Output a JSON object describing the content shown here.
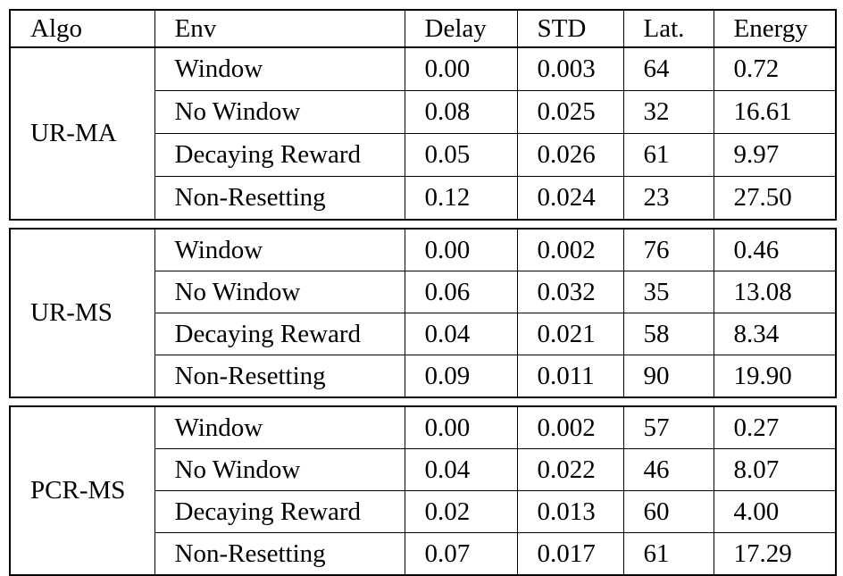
{
  "table": {
    "headers": {
      "algo": "Algo",
      "env": "Env",
      "delay": "Delay",
      "std": "STD",
      "lat": "Lat.",
      "energy": "Energy"
    },
    "groups": [
      {
        "algo": "UR-MA",
        "rows": [
          {
            "env": "Window",
            "delay": "0.00",
            "std": "0.003",
            "lat": "64",
            "energy": "0.72"
          },
          {
            "env": "No Window",
            "delay": "0.08",
            "std": "0.025",
            "lat": "32",
            "energy": "16.61"
          },
          {
            "env": "Decaying Reward",
            "delay": "0.05",
            "std": "0.026",
            "lat": "61",
            "energy": "9.97"
          },
          {
            "env": "Non-Resetting",
            "delay": "0.12",
            "std": "0.024",
            "lat": "23",
            "energy": "27.50"
          }
        ]
      },
      {
        "algo": "UR-MS",
        "rows": [
          {
            "env": "Window",
            "delay": "0.00",
            "std": "0.002",
            "lat": "76",
            "energy": "0.46"
          },
          {
            "env": "No Window",
            "delay": "0.06",
            "std": "0.032",
            "lat": "35",
            "energy": "13.08"
          },
          {
            "env": "Decaying Reward",
            "delay": "0.04",
            "std": "0.021",
            "lat": "58",
            "energy": "8.34"
          },
          {
            "env": "Non-Resetting",
            "delay": "0.09",
            "std": "0.011",
            "lat": "90",
            "energy": "19.90"
          }
        ]
      },
      {
        "algo": "PCR-MS",
        "rows": [
          {
            "env": "Window",
            "delay": "0.00",
            "std": "0.002",
            "lat": "57",
            "energy": "0.27"
          },
          {
            "env": "No Window",
            "delay": "0.04",
            "std": "0.022",
            "lat": "46",
            "energy": "8.07"
          },
          {
            "env": "Decaying Reward",
            "delay": "0.02",
            "std": "0.013",
            "lat": "60",
            "energy": "4.00"
          },
          {
            "env": "Non-Resetting",
            "delay": "0.07",
            "std": "0.017",
            "lat": "61",
            "energy": "17.29"
          }
        ]
      }
    ]
  },
  "chart_data": {
    "type": "table",
    "columns": [
      "Algo",
      "Env",
      "Delay",
      "STD",
      "Lat.",
      "Energy"
    ],
    "rows": [
      [
        "UR-MA",
        "Window",
        "0.00",
        "0.003",
        "64",
        "0.72"
      ],
      [
        "UR-MA",
        "No Window",
        "0.08",
        "0.025",
        "32",
        "16.61"
      ],
      [
        "UR-MA",
        "Decaying Reward",
        "0.05",
        "0.026",
        "61",
        "9.97"
      ],
      [
        "UR-MA",
        "Non-Resetting",
        "0.12",
        "0.024",
        "23",
        "27.50"
      ],
      [
        "UR-MS",
        "Window",
        "0.00",
        "0.002",
        "76",
        "0.46"
      ],
      [
        "UR-MS",
        "No Window",
        "0.06",
        "0.032",
        "35",
        "13.08"
      ],
      [
        "UR-MS",
        "Decaying Reward",
        "0.04",
        "0.021",
        "58",
        "8.34"
      ],
      [
        "UR-MS",
        "Non-Resetting",
        "0.09",
        "0.011",
        "90",
        "19.90"
      ],
      [
        "PCR-MS",
        "Window",
        "0.00",
        "0.002",
        "57",
        "0.27"
      ],
      [
        "PCR-MS",
        "No Window",
        "0.04",
        "0.022",
        "46",
        "8.07"
      ],
      [
        "PCR-MS",
        "Decaying Reward",
        "0.02",
        "0.013",
        "60",
        "4.00"
      ],
      [
        "PCR-MS",
        "Non-Resetting",
        "0.07",
        "0.017",
        "61",
        "17.29"
      ]
    ]
  }
}
